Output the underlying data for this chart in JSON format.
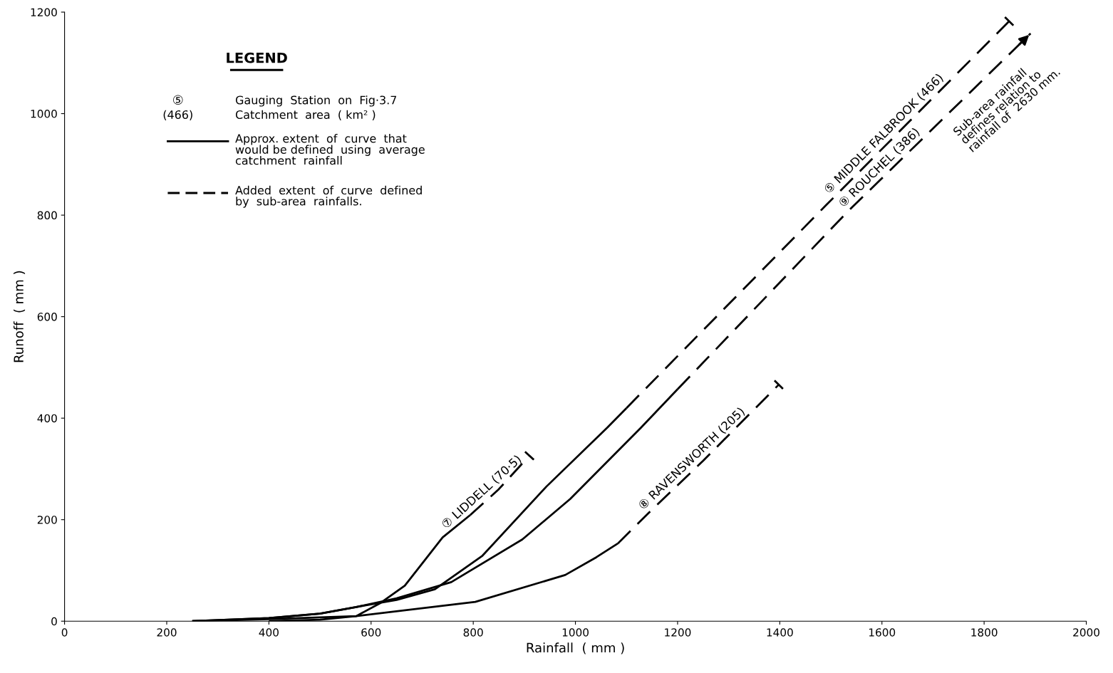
{
  "chart_data": {
    "type": "line",
    "xlabel": "Rainfall  ( mm )",
    "ylabel": "Runoff  ( mm )",
    "xlim": [
      0,
      2000
    ],
    "xticks": [
      0,
      200,
      400,
      600,
      800,
      1000,
      1200,
      1400,
      1600,
      1800,
      2000
    ],
    "ylim": [
      0,
      1200
    ],
    "yticks": [
      0,
      200,
      400,
      600,
      800,
      1000,
      1200
    ],
    "grid": false,
    "series": [
      {
        "color": "#000000",
        "line_style": "solid",
        "x": [
          400,
          500,
          571,
          617,
          666,
          701,
          740,
          794
        ],
        "values": [
          0,
          3,
          10,
          35,
          70,
          115,
          165,
          209
        ]
      },
      {
        "name": "⑦ LIDDELL (70·5)",
        "color": "#000000",
        "line_style": "dashed",
        "x": [
          794,
          850,
          910
        ],
        "values": [
          209,
          260,
          326
        ]
      },
      {
        "color": "#000000",
        "line_style": "solid",
        "x": [
          250,
          400,
          500,
          571,
          650,
          725,
          818,
          943,
          1063,
          1100
        ],
        "values": [
          0,
          6,
          15,
          28,
          42,
          63,
          129,
          265,
          382,
          420
        ]
      },
      {
        "name": "⑤ MIDDLE FALBROOK (466)",
        "color": "#000000",
        "line_style": "dashed",
        "x": [
          1100,
          1491,
          1849
        ],
        "values": [
          420,
          820,
          1182
        ]
      },
      {
        "color": "#000000",
        "line_style": "solid",
        "x": [
          250,
          400,
          500,
          571,
          650,
          757,
          896,
          990,
          1129,
          1200
        ],
        "values": [
          0,
          6,
          15,
          28,
          45,
          77,
          161,
          241,
          382,
          457
        ]
      },
      {
        "name": "⑨ ROUCHEL (386)",
        "color": "#000000",
        "line_style": "dashed",
        "x": [
          1200,
          1533,
          1891
        ],
        "values": [
          457,
          807,
          1158
        ]
      },
      {
        "color": "#000000",
        "line_style": "solid",
        "x": [
          250,
          400,
          571,
          804,
          980,
          1041,
          1083
        ],
        "values": [
          0,
          4,
          10,
          38,
          91,
          126,
          153
        ]
      },
      {
        "name": "⑧ RAVENSWORTH (205)",
        "color": "#000000",
        "line_style": "dashed",
        "x": [
          1083,
          1143,
          1250,
          1398
        ],
        "values": [
          153,
          213,
          316,
          466
        ]
      }
    ],
    "annotations": [
      "LEGEND",
      "⑤",
      "Gauging  Station  on  Fig·3.7",
      "(466)",
      "Catchment  area  ( km² )",
      "Approx. extent  of  curve  that\nwould be defined  using  average\ncatchment  rainfall",
      "Added  extent  of  curve  defined\nby  sub-area  rainfalls.",
      "Sub-area rainfall\ndefines relation to\nrainfall of  2630 mm."
    ]
  }
}
